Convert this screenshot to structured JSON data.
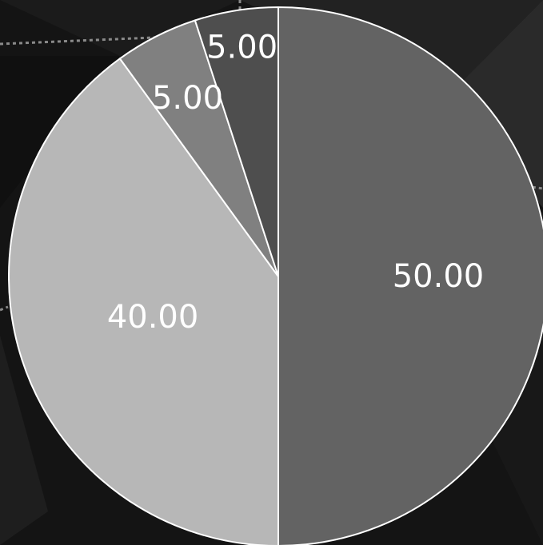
{
  "chart_data": {
    "type": "pie",
    "values": [
      50.0,
      40.0,
      5.0,
      5.0
    ],
    "labels": [
      "50.00",
      "40.00",
      "5.00",
      "5.00"
    ],
    "colors": [
      "#636363",
      "#b7b7b7",
      "#808080",
      "#4e4e4e"
    ],
    "start_angle": "12 o'clock",
    "direction": "clockwise",
    "slice_border": "#ffffff",
    "legend": "none"
  },
  "background": {
    "color": "#141414",
    "style": "dark faceted polygon texture with dotted lines"
  }
}
